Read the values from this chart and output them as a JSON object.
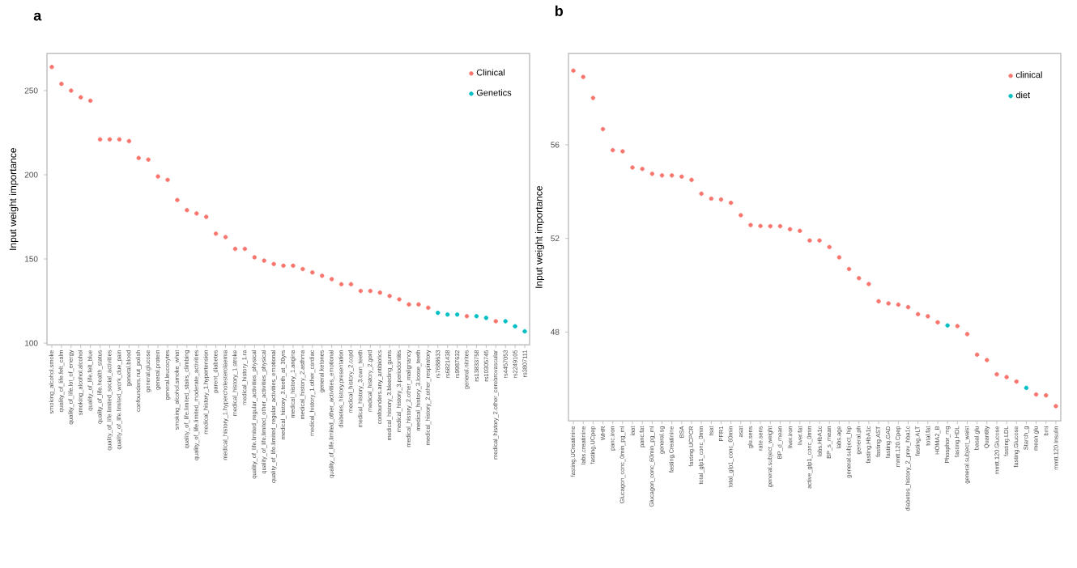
{
  "chart_data": [
    {
      "type": "scatter",
      "title": "a",
      "ylabel": "Input weight importance",
      "ylim": [
        99,
        272
      ],
      "yticks": [
        100,
        150,
        200,
        250
      ],
      "legend": "top right",
      "marker": "circle",
      "categories": [
        "smoking_alcohol.smoke",
        "quality_of_life.felt_calm",
        "quality_of_life.lot_of_energy",
        "smoking_alcohol.alcohol",
        "quality_of_life.felt_blue",
        "quality_of_life.health_status",
        "quality_of_life.limited_social_activities",
        "quality_of_life.limited_work_due_pain",
        "general.blood",
        "confounders.nut_polish",
        "general.glucose",
        "general.protein",
        "general.leucocytes",
        "smoking_alcohol.smoke_what",
        "quality_of_life.limited_stairs_climbing",
        "quality_of_life.limited_moderate_activities",
        "medical_history_1.hypertension",
        "parent_diabetes",
        "medical_history_1.hypercholesterolaemia",
        "medical_history_1.stroke",
        "medical_history_1.ra",
        "quality_of_life.limited_regular_activities_physical",
        "quality_of_life.limited_other_activities_physical",
        "quality_of_life.limited_regular_activities_emotional",
        "medical_history_3.teeth_at_30yrs",
        "medical_history_1.angina",
        "medical_history_2.asthma",
        "medical_history_1.other_cardiac",
        "general.ketones",
        "quality_of_life.limited_other_activities_emotional",
        "diabetes_history.presentation",
        "medical_history_2.copd",
        "medical_history_3.own_teeth",
        "medical_history_2.gord",
        "confounders.any_antibiotics",
        "medical_history_3.bleeding_gums",
        "medical_history_3.periodontitis",
        "medical_history_2.other_malignancy",
        "medical_history_3.loose_teeth",
        "medical_history_2.other_respiratory",
        "rs7688633",
        "rs6821438",
        "rs9987632",
        "general.nitrites",
        "rs13833758",
        "rs10305745",
        "medical_history_2.other_cerebrovascular",
        "rs4457053",
        "rs2249105",
        "rs3807111"
      ],
      "series": [
        {
          "name": "Clinical",
          "color": "#f8766d",
          "values": [
            264,
            254,
            250,
            246,
            244,
            221,
            221,
            221,
            220,
            210,
            209,
            199,
            197,
            185,
            179,
            177,
            175,
            165,
            163,
            156,
            156,
            151,
            149,
            147,
            146,
            146,
            144,
            142,
            140,
            138,
            135,
            135,
            131,
            131,
            130,
            128,
            126,
            123,
            123,
            121,
            null,
            null,
            null,
            116,
            null,
            null,
            113,
            null,
            null,
            null
          ]
        },
        {
          "name": "Genetics",
          "color": "#00bfc4",
          "values": [
            null,
            null,
            null,
            null,
            null,
            null,
            null,
            null,
            null,
            null,
            null,
            null,
            null,
            null,
            null,
            null,
            null,
            null,
            null,
            null,
            null,
            null,
            null,
            null,
            null,
            null,
            null,
            null,
            null,
            null,
            null,
            null,
            null,
            null,
            null,
            null,
            null,
            null,
            null,
            null,
            118,
            117,
            117,
            null,
            116,
            115,
            null,
            113,
            110,
            107
          ]
        }
      ]
    },
    {
      "type": "scatter",
      "title": "b",
      "ylabel": "Input weight importance",
      "ylim": [
        44.2,
        59.9
      ],
      "yticks": [
        48,
        52,
        56
      ],
      "legend": "top right",
      "marker": "circle",
      "categories": [
        "fasting.UCreatinine",
        "labs.creatinine",
        "fasting.UCpep",
        "WHR",
        "panc.iron",
        "Glucagon_conc_0min_pg_ml",
        "iaat",
        "panc.fat",
        "Glucagon_conc_60min_pg_ml",
        "general.sg",
        "fasting.Creatinine",
        "BSA",
        "fasting.UCPCR",
        "total_glp1_conc_0min",
        "tsat",
        "PFR1",
        "total_glp1_conc_60min",
        "asat",
        "glu.sens",
        "rate.sens",
        "general.subject_weight",
        "BP_d_mean",
        "liver.iron",
        "liver.fat",
        "active_glp1_conc_0min",
        "labs.HbA1c",
        "BP_s_mean",
        "labs.age",
        "general.subject_hip",
        "general.ph",
        "fasting.HbA1c",
        "fasting.AST",
        "fasting.GAD",
        "mmtt.120.Cpep",
        "diabetes_history_2_prev_hba1c",
        "fasting.ALT",
        "total.fat",
        "HOMA2_B",
        "Phosphor_mg",
        "fasting.HDL",
        "general.subject_waist",
        "basal.glu",
        "Quantity",
        "mmtt.120.Glucose",
        "fasting.LDL",
        "fasting.Glucose",
        "Starch_g",
        "mean.glu",
        "bmi",
        "mmtt.120.Insulin"
      ],
      "series": [
        {
          "name": "clinical",
          "color": "#f8766d",
          "values": [
            59.17,
            58.9,
            58.0,
            56.67,
            55.77,
            55.72,
            55.03,
            54.97,
            54.76,
            54.69,
            54.69,
            54.64,
            54.5,
            53.91,
            53.7,
            53.66,
            53.52,
            52.99,
            52.57,
            52.53,
            52.52,
            52.52,
            52.39,
            52.32,
            51.91,
            51.91,
            51.63,
            51.19,
            50.69,
            50.3,
            50.05,
            49.31,
            49.22,
            49.17,
            49.06,
            48.76,
            48.67,
            48.41,
            null,
            48.25,
            47.91,
            47.03,
            46.8,
            46.19,
            46.07,
            45.88,
            null,
            45.33,
            45.29,
            44.83
          ]
        },
        {
          "name": "diet",
          "color": "#00bfc4",
          "values": [
            null,
            null,
            null,
            null,
            null,
            null,
            null,
            null,
            null,
            null,
            null,
            null,
            null,
            null,
            null,
            null,
            null,
            null,
            null,
            null,
            null,
            null,
            null,
            null,
            null,
            null,
            null,
            null,
            null,
            null,
            null,
            null,
            null,
            null,
            null,
            null,
            null,
            null,
            48.28,
            null,
            null,
            null,
            null,
            null,
            null,
            null,
            45.61,
            null,
            null,
            null
          ]
        }
      ]
    }
  ]
}
